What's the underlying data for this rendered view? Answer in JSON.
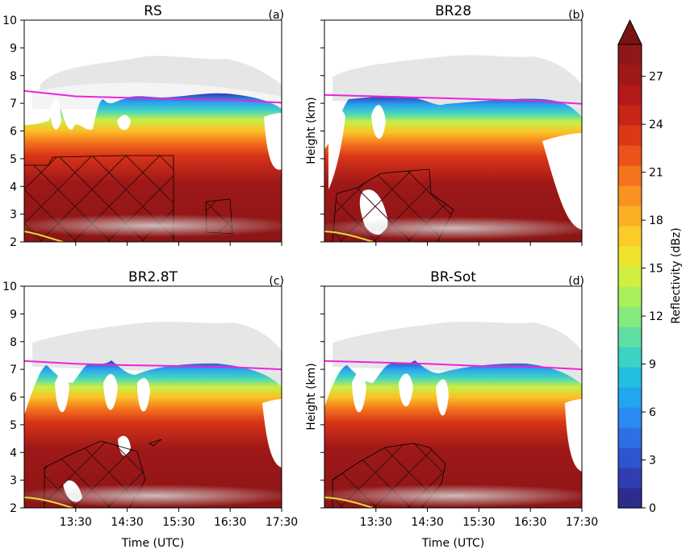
{
  "chart_data": {
    "type": "contour",
    "colorbar": {
      "label": "Reflectivity (dBz)",
      "min": 0,
      "max": 29,
      "ticks": [
        0,
        3,
        6,
        9,
        12,
        15,
        18,
        21,
        24,
        27
      ],
      "extend": "max",
      "colors": [
        "#2b2d8c",
        "#2f3eb0",
        "#2e55cf",
        "#2f6fe4",
        "#2a8bf0",
        "#22a6f0",
        "#23bfe0",
        "#3dd3c4",
        "#5fe0a2",
        "#85ea7e",
        "#aaf05c",
        "#d0ef40",
        "#eee42e",
        "#fbcc28",
        "#fbb024",
        "#f99220",
        "#f4731d",
        "#ea541a",
        "#dc3818",
        "#c82418",
        "#b31a1a",
        "#9e1818",
        "#8e1818"
      ],
      "over_color": "#7a1414"
    },
    "panels": [
      {
        "id": "a",
        "title": "RS",
        "tag": "(a)"
      },
      {
        "id": "b",
        "title": "BR28",
        "tag": "(b)"
      },
      {
        "id": "c",
        "title": "BR2.8T",
        "tag": "(c)"
      },
      {
        "id": "d",
        "title": "BR-Sot",
        "tag": "(d)"
      }
    ],
    "x_axis": {
      "label": "Time (UTC)",
      "tick_labels": [
        "13:30",
        "14:30",
        "15:30",
        "16:30",
        "17:30"
      ],
      "tick_hours": [
        13.5,
        14.5,
        15.5,
        16.5,
        17.5
      ],
      "range": [
        12.5,
        17.5
      ]
    },
    "y_axis": {
      "label": "Height (km)",
      "range": [
        2,
        10
      ],
      "ticks": [
        2,
        3,
        4,
        5,
        6,
        7,
        8,
        9,
        10
      ]
    },
    "melting_layer_km": [
      {
        "panel": "a",
        "x": [
          12.5,
          13.5,
          14.5,
          15.5,
          16.5,
          17.5
        ],
        "y": [
          7.45,
          7.25,
          7.2,
          7.15,
          7.12,
          7.02
        ]
      },
      {
        "panel": "b",
        "x": [
          12.5,
          13.5,
          14.5,
          15.5,
          16.5,
          17.5
        ],
        "y": [
          7.3,
          7.25,
          7.2,
          7.15,
          7.1,
          6.98
        ]
      },
      {
        "panel": "c",
        "x": [
          12.5,
          13.5,
          14.5,
          15.5,
          16.5,
          17.5
        ],
        "y": [
          7.3,
          7.2,
          7.15,
          7.12,
          7.08,
          7.0
        ]
      },
      {
        "panel": "d",
        "x": [
          12.5,
          13.5,
          14.5,
          15.5,
          16.5,
          17.5
        ],
        "y": [
          7.3,
          7.25,
          7.2,
          7.12,
          7.1,
          7.0
        ]
      }
    ]
  }
}
